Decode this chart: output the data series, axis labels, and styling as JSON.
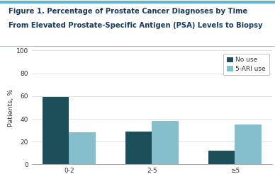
{
  "title_line1": "Figure 1. Percentage of Prostate Cancer Diagnoses by Time",
  "title_line2": "From Elevated Prostate-Specific Antigen (PSA) Levels to Biopsy",
  "categories": [
    "0-2",
    "2-5",
    "≥5"
  ],
  "no_use_values": [
    59,
    29,
    12
  ],
  "ari_use_values": [
    28,
    38,
    35
  ],
  "no_use_color": "#1c4f5a",
  "ari_use_color": "#85bfcc",
  "ylabel": "Patients, %",
  "ylim": [
    0,
    100
  ],
  "yticks": [
    0,
    20,
    40,
    60,
    80,
    100
  ],
  "legend_labels": [
    "No use",
    "5-ARI use"
  ],
  "bar_width": 0.32,
  "title_color": "#1a3a5c",
  "background_color": "#ffffff",
  "top_border_color": "#5ab4d6",
  "separator_color": "#b0b8c0",
  "title_fontsize": 7.2,
  "axis_fontsize": 6.8,
  "tick_fontsize": 6.5,
  "legend_fontsize": 6.5
}
